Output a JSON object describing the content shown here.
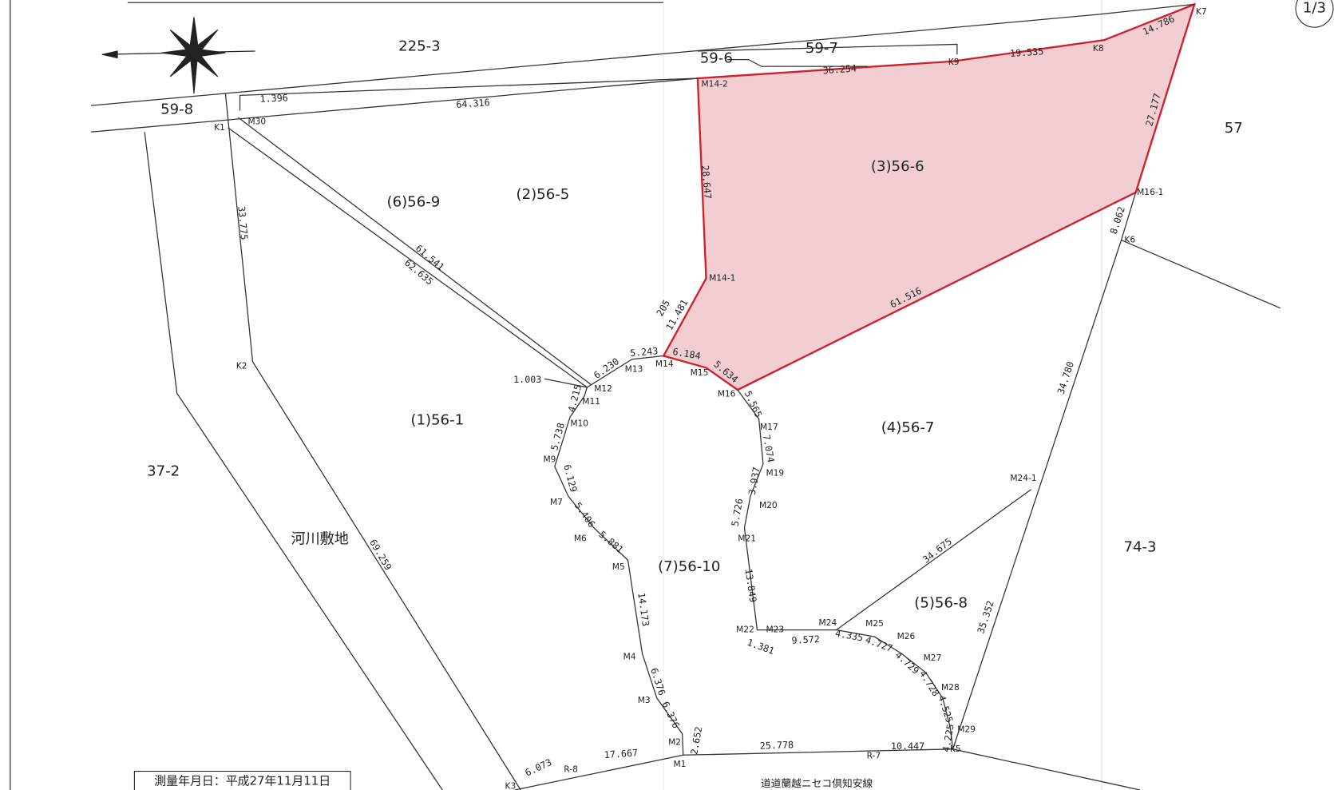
{
  "page_number": "1/3",
  "parcels": [
    "225-3",
    "59-7",
    "59-6",
    "59-8",
    "57",
    "(3)56-6",
    "(2)56-5",
    "(6)56-9",
    "(1)56-1",
    "(4)56-7",
    "37-2",
    "河川敷地",
    "74-3",
    "(7)56-10",
    "(5)56-8"
  ],
  "points": [
    "K7",
    "K8",
    "K9",
    "M14-2",
    "K1",
    "M30",
    "M16-1",
    "K6",
    "M14-1",
    "M14",
    "M13",
    "M15",
    "M12",
    "M16",
    "M11",
    "M10",
    "M17",
    "M9",
    "M19",
    "M24-1",
    "M7",
    "M20",
    "M6",
    "M21",
    "M5",
    "M4",
    "M22",
    "M23",
    "M24",
    "M25",
    "M26",
    "M27",
    "M28",
    "M3",
    "M29",
    "M2",
    "K5",
    "M1",
    "R-7",
    "R-8",
    "K3",
    "K2"
  ],
  "distances": [
    "14.786",
    "36.254",
    "19.535",
    "1.396",
    "64.316",
    "27.177",
    "28.647",
    "33.775",
    "8.062",
    "61.541",
    "62.635",
    "205",
    "11.481",
    "61.516",
    "5.243",
    "6.184",
    "6.230",
    "5.634",
    "1.003",
    "34.780",
    "4.215",
    "5.565",
    "5.738",
    "7.074",
    "3.937",
    "6.129",
    "5.726",
    "5.406",
    "5.881",
    "34.675",
    "69.259",
    "13.849",
    "14.173",
    "35.352",
    "4.335",
    "9.572",
    "1.381",
    "4.727",
    "4.729",
    "4.728",
    "6.376",
    "4.525",
    "6.376",
    "4.225",
    "2.652",
    "25.778",
    "10.447",
    "17.667",
    "6.073"
  ],
  "road_name": "道道蘭越ニセコ倶知安線",
  "survey_date": "測量年月日：平成27年11月11日"
}
